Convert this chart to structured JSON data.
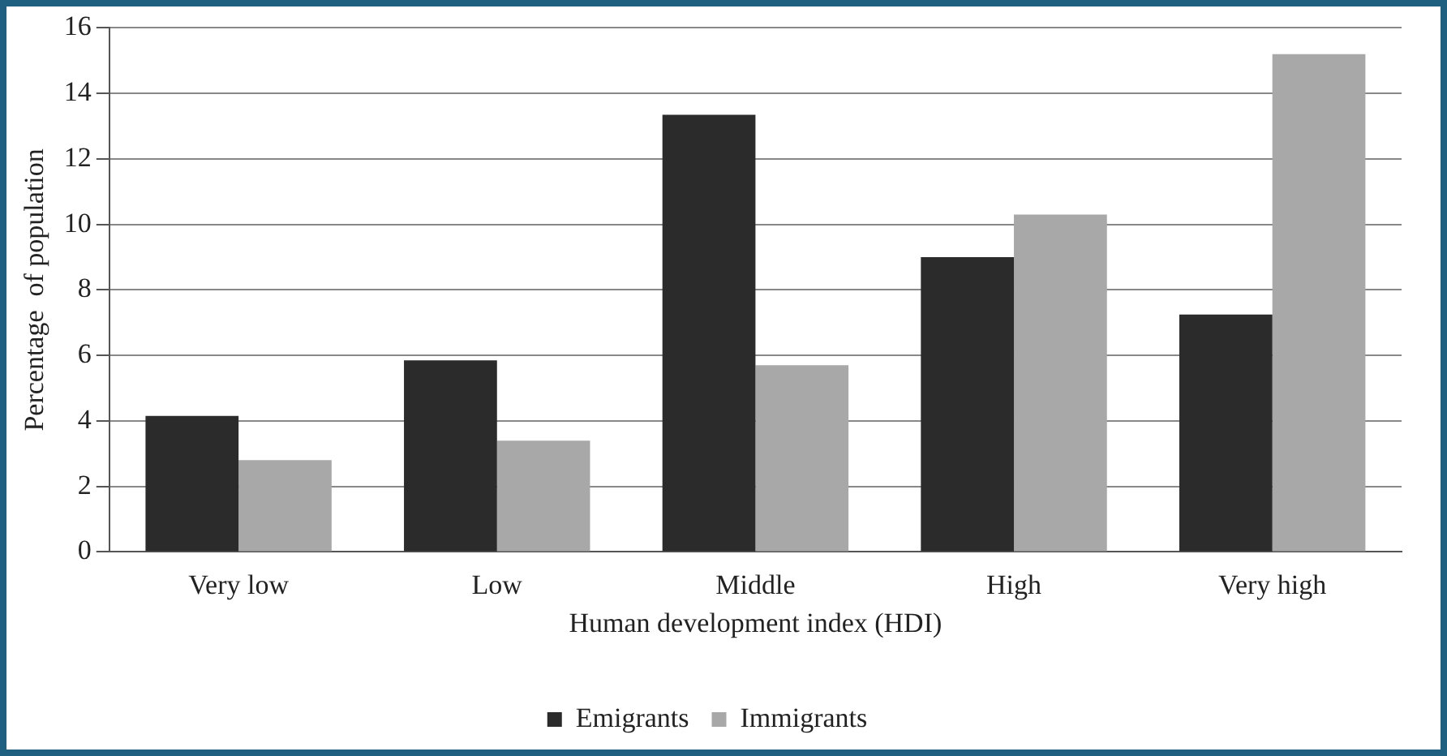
{
  "chart_data": {
    "type": "bar",
    "xlabel": "Human development index (HDI)",
    "ylabel": "Percentage  of population",
    "categories": [
      "Very low",
      "Low",
      "Middle",
      "High",
      "Very high"
    ],
    "series": [
      {
        "name": "Emigrants",
        "color": "#2b2b2b",
        "values": [
          4.15,
          5.85,
          13.35,
          9.0,
          7.25
        ]
      },
      {
        "name": "Immigrants",
        "color": "#a8a8a8",
        "values": [
          2.8,
          3.4,
          5.7,
          10.3,
          15.2
        ]
      }
    ],
    "ylim": [
      0,
      16
    ],
    "yticks": [
      0,
      2,
      4,
      6,
      8,
      10,
      12,
      14,
      16
    ],
    "grid": "y",
    "legend": "bottom"
  }
}
